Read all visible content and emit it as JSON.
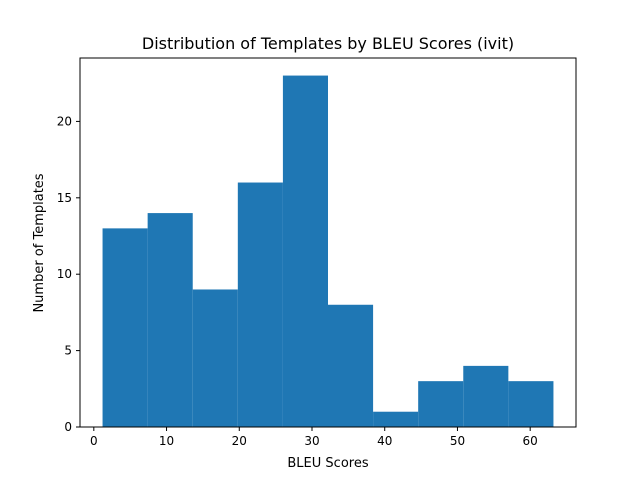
{
  "chart_data": {
    "type": "bar",
    "subtype": "histogram",
    "title": "Distribution of Templates by BLEU Scores (ivit)",
    "xlabel": "BLEU Scores",
    "ylabel": "Number of Templates",
    "bins": [
      {
        "start": 1.2,
        "end": 7.4,
        "count": 13
      },
      {
        "start": 7.4,
        "end": 13.6,
        "count": 14
      },
      {
        "start": 13.6,
        "end": 19.8,
        "count": 9
      },
      {
        "start": 19.8,
        "end": 26.0,
        "count": 16
      },
      {
        "start": 26.0,
        "end": 32.2,
        "count": 23
      },
      {
        "start": 32.2,
        "end": 38.4,
        "count": 8
      },
      {
        "start": 38.4,
        "end": 44.6,
        "count": 1
      },
      {
        "start": 44.6,
        "end": 50.8,
        "count": 3
      },
      {
        "start": 50.8,
        "end": 57.0,
        "count": 4
      },
      {
        "start": 57.0,
        "end": 63.2,
        "count": 3
      }
    ],
    "xlim": [
      -1.9,
      66.3
    ],
    "ylim": [
      0,
      24.15
    ],
    "xticks": [
      0,
      10,
      20,
      30,
      40,
      50,
      60
    ],
    "yticks": [
      0,
      5,
      10,
      15,
      20
    ],
    "grid": false,
    "bar_color": "#1f77b4"
  }
}
